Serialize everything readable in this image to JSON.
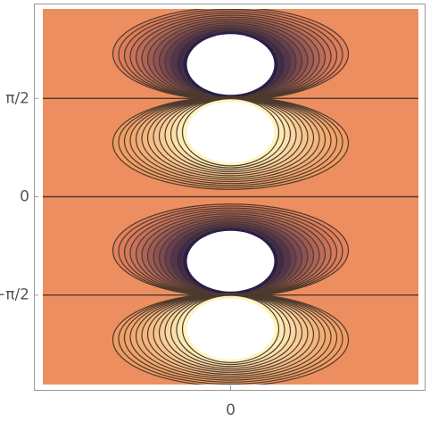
{
  "chart_data": {
    "type": "contour",
    "xlim": [
      -3,
      3
    ],
    "ylim": [
      -3,
      3
    ],
    "xticks": [
      0
    ],
    "yticks": [
      {
        "value": -1.5708,
        "label": "−π/2"
      },
      0,
      {
        "value": 1.5708,
        "label": "π/2"
      }
    ]
  }
}
